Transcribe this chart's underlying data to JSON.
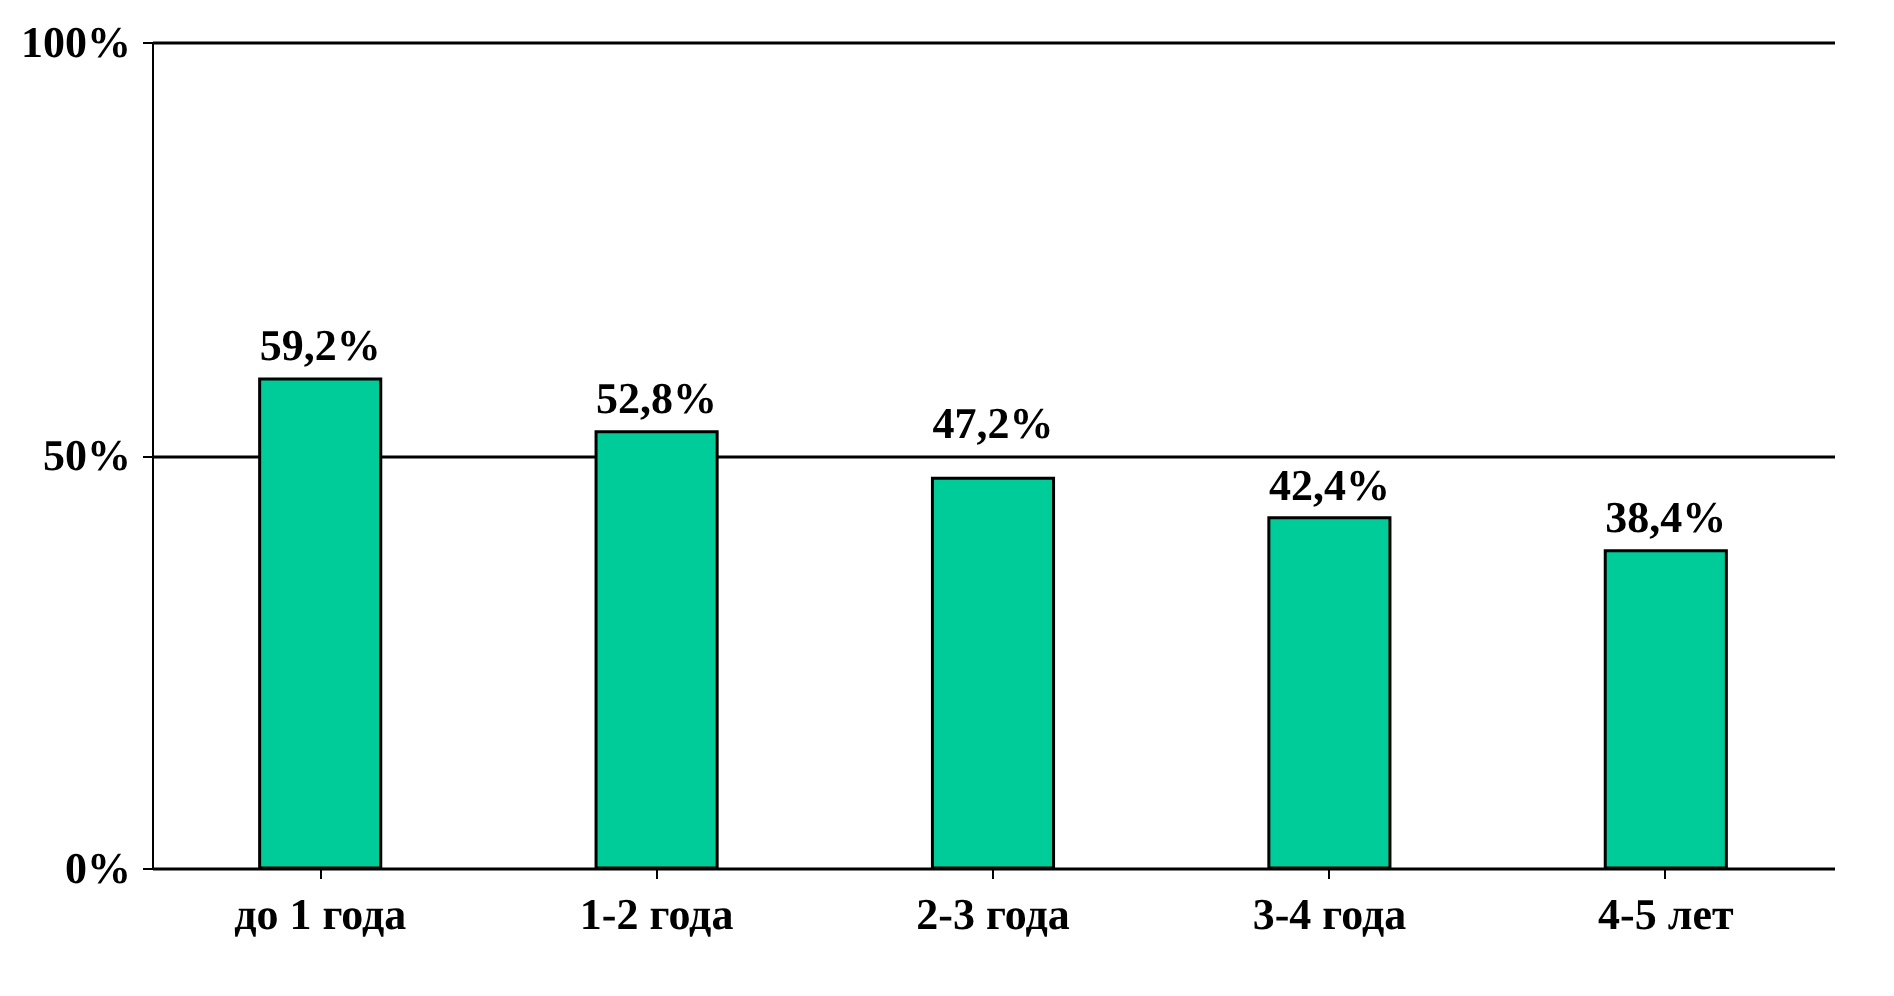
{
  "chart_data": {
    "type": "bar",
    "categories": [
      "до 1 года",
      "1-2 года",
      "2-3 года",
      "3-4 года",
      "4-5 лет"
    ],
    "values": [
      59.2,
      52.8,
      47.2,
      42.4,
      38.4
    ],
    "value_labels": [
      "59,2%",
      "52,8%",
      "47,2%",
      "42,4%",
      "38,4%"
    ],
    "color": "#00cc99",
    "ylim": [
      0,
      100
    ],
    "yticks": [
      {
        "value": 0,
        "label": "0%"
      },
      {
        "value": 50,
        "label": "50%"
      },
      {
        "value": 100,
        "label": "100%"
      }
    ],
    "grid": "y"
  }
}
